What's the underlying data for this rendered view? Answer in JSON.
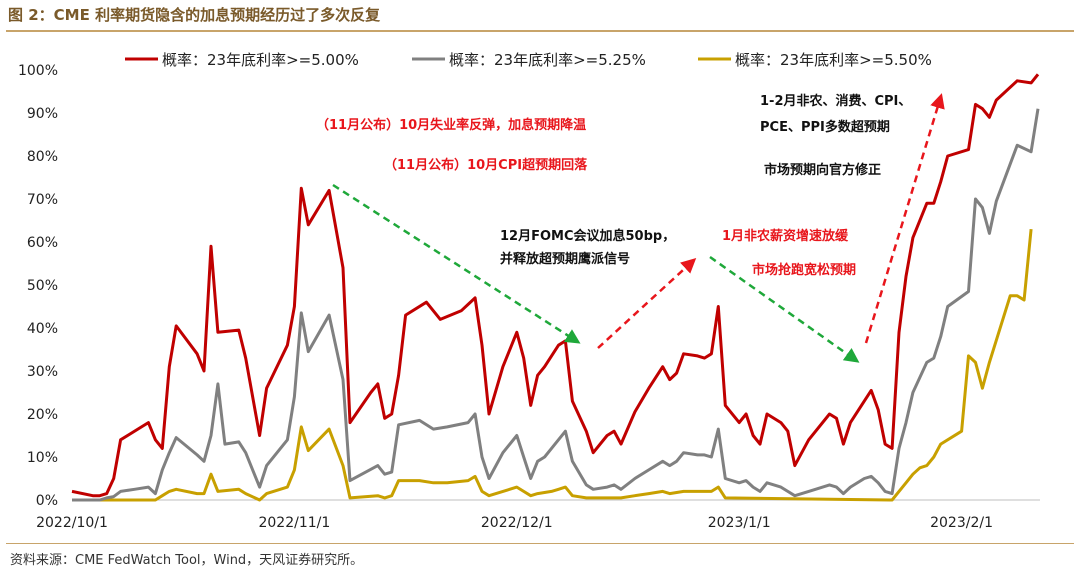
{
  "figure_title": "图 2：CME 利率期货隐含的加息预期经历过了多次反复",
  "source": "资料来源：CME FedWatch Tool，Wind，天风证券研究所。",
  "chart_data": {
    "type": "line",
    "title": "",
    "xlabel": "",
    "ylabel": "",
    "ylim": [
      0,
      100
    ],
    "y_ticks": [
      "0%",
      "10%",
      "20%",
      "30%",
      "40%",
      "50%",
      "60%",
      "70%",
      "80%",
      "90%",
      "100%"
    ],
    "x_ticks": [
      "2022/10/1",
      "2022/11/1",
      "2022/12/1",
      "2023/1/1",
      "2023/2/1"
    ],
    "legend_position": "top",
    "grid": false,
    "series": [
      {
        "name": "概率：23年底利率>=5.00%",
        "color": "#c00000",
        "values": [
          [
            0,
            2
          ],
          [
            3,
            1
          ],
          [
            4,
            1
          ],
          [
            5,
            1.5
          ],
          [
            6,
            5
          ],
          [
            7,
            14
          ],
          [
            10,
            17
          ],
          [
            11,
            18
          ],
          [
            12,
            14
          ],
          [
            13,
            12
          ],
          [
            14,
            31
          ],
          [
            15,
            40.5
          ],
          [
            18,
            34
          ],
          [
            19,
            30
          ],
          [
            20,
            59
          ],
          [
            21,
            39
          ],
          [
            24,
            39.5
          ],
          [
            25,
            33
          ],
          [
            27,
            15
          ],
          [
            28,
            26
          ],
          [
            31,
            36
          ],
          [
            32,
            45
          ],
          [
            33,
            72.5
          ],
          [
            34,
            64
          ],
          [
            37,
            72
          ],
          [
            39,
            54
          ],
          [
            40,
            18
          ],
          [
            43,
            25
          ],
          [
            44,
            27
          ],
          [
            45,
            19
          ],
          [
            46,
            20
          ],
          [
            47,
            29
          ],
          [
            48,
            43
          ],
          [
            51,
            46
          ],
          [
            53,
            42
          ],
          [
            56,
            44
          ],
          [
            57,
            45.5
          ],
          [
            58,
            47
          ],
          [
            59,
            36
          ],
          [
            60,
            20
          ],
          [
            62,
            31
          ],
          [
            64,
            39
          ],
          [
            65,
            33
          ],
          [
            66,
            22
          ],
          [
            67,
            29
          ],
          [
            68,
            31
          ],
          [
            70,
            36
          ],
          [
            71,
            37
          ],
          [
            72,
            23
          ],
          [
            74,
            16
          ],
          [
            75,
            11
          ],
          [
            77,
            15
          ],
          [
            78,
            16
          ],
          [
            79,
            13
          ],
          [
            81,
            20.5
          ],
          [
            83,
            26
          ],
          [
            85,
            31
          ],
          [
            86,
            28
          ],
          [
            87,
            29.5
          ],
          [
            88,
            34
          ],
          [
            90,
            33.5
          ],
          [
            91,
            33
          ],
          [
            92,
            34
          ],
          [
            93,
            45
          ],
          [
            94,
            22
          ],
          [
            96,
            18
          ],
          [
            97,
            20
          ],
          [
            98,
            15
          ],
          [
            99,
            13
          ],
          [
            100,
            20
          ],
          [
            102,
            18
          ],
          [
            103,
            16
          ],
          [
            104,
            8
          ],
          [
            106,
            14
          ],
          [
            109,
            20
          ],
          [
            110,
            19
          ],
          [
            111,
            13
          ],
          [
            112,
            18
          ],
          [
            114,
            23
          ],
          [
            115,
            25.5
          ],
          [
            116,
            21
          ],
          [
            117,
            13
          ],
          [
            118,
            12
          ],
          [
            119,
            39
          ],
          [
            120,
            52
          ],
          [
            121,
            61
          ],
          [
            123,
            69
          ],
          [
            124,
            69
          ],
          [
            125,
            74
          ],
          [
            126,
            80
          ],
          [
            129,
            81.5
          ],
          [
            130,
            92
          ],
          [
            131,
            91
          ],
          [
            132,
            89
          ],
          [
            133,
            93
          ],
          [
            136,
            97.5
          ],
          [
            138,
            97
          ],
          [
            139,
            99
          ]
        ]
      },
      {
        "name": "概率：23年底利率>=5.25%",
        "color": "#808080",
        "values": [
          [
            0,
            0
          ],
          [
            4,
            0
          ],
          [
            5,
            0.5
          ],
          [
            6,
            0.8
          ],
          [
            7,
            2
          ],
          [
            9,
            2.5
          ],
          [
            11,
            3
          ],
          [
            12,
            1.5
          ],
          [
            13,
            7
          ],
          [
            14,
            11
          ],
          [
            15,
            14.5
          ],
          [
            18,
            10.5
          ],
          [
            19,
            9
          ],
          [
            20,
            15
          ],
          [
            21,
            27
          ],
          [
            22,
            13
          ],
          [
            24,
            13.5
          ],
          [
            25,
            11
          ],
          [
            27,
            3
          ],
          [
            28,
            8
          ],
          [
            31,
            14
          ],
          [
            32,
            24
          ],
          [
            33,
            43.5
          ],
          [
            34,
            34.5
          ],
          [
            37,
            43
          ],
          [
            39,
            28
          ],
          [
            40,
            4.5
          ],
          [
            44,
            8
          ],
          [
            45,
            6
          ],
          [
            46,
            6.5
          ],
          [
            47,
            17.5
          ],
          [
            50,
            18.5
          ],
          [
            52,
            16.5
          ],
          [
            54,
            17
          ],
          [
            57,
            18
          ],
          [
            58,
            20
          ],
          [
            59,
            10
          ],
          [
            60,
            5
          ],
          [
            62,
            11
          ],
          [
            64,
            15
          ],
          [
            65,
            10
          ],
          [
            66,
            5
          ],
          [
            67,
            9
          ],
          [
            68,
            10
          ],
          [
            69,
            12
          ],
          [
            71,
            16
          ],
          [
            72,
            9
          ],
          [
            74,
            3.5
          ],
          [
            75,
            2.5
          ],
          [
            77,
            3
          ],
          [
            78,
            3.5
          ],
          [
            79,
            2.5
          ],
          [
            81,
            5
          ],
          [
            83,
            7
          ],
          [
            85,
            9
          ],
          [
            86,
            8
          ],
          [
            87,
            9
          ],
          [
            88,
            11
          ],
          [
            90,
            10.5
          ],
          [
            91,
            10.5
          ],
          [
            92,
            10
          ],
          [
            93,
            16.5
          ],
          [
            94,
            5
          ],
          [
            96,
            4
          ],
          [
            97,
            4.5
          ],
          [
            98,
            3
          ],
          [
            99,
            2
          ],
          [
            100,
            4
          ],
          [
            102,
            3
          ],
          [
            103,
            2
          ],
          [
            104,
            1
          ],
          [
            106,
            2
          ],
          [
            109,
            3.5
          ],
          [
            110,
            3
          ],
          [
            111,
            1.5
          ],
          [
            112,
            3
          ],
          [
            114,
            5
          ],
          [
            115,
            5.5
          ],
          [
            116,
            4
          ],
          [
            117,
            2
          ],
          [
            118,
            1.5
          ],
          [
            119,
            12
          ],
          [
            120,
            18
          ],
          [
            121,
            25
          ],
          [
            123,
            32
          ],
          [
            124,
            33
          ],
          [
            125,
            38
          ],
          [
            126,
            45
          ],
          [
            129,
            48.5
          ],
          [
            130,
            70
          ],
          [
            131,
            68
          ],
          [
            132,
            62
          ],
          [
            133,
            69.5
          ],
          [
            136,
            82.5
          ],
          [
            138,
            81
          ],
          [
            139,
            91
          ]
        ]
      },
      {
        "name": "概率：23年底利率>=5.50%",
        "color": "#c8a000",
        "values": [
          [
            0,
            0
          ],
          [
            12,
            0
          ],
          [
            13,
            1
          ],
          [
            14,
            2
          ],
          [
            15,
            2.5
          ],
          [
            18,
            1.5
          ],
          [
            19,
            1.5
          ],
          [
            20,
            6
          ],
          [
            21,
            2
          ],
          [
            24,
            2.5
          ],
          [
            25,
            1.5
          ],
          [
            27,
            0
          ],
          [
            28,
            1.5
          ],
          [
            31,
            3
          ],
          [
            32,
            7
          ],
          [
            33,
            17
          ],
          [
            34,
            11.5
          ],
          [
            37,
            16.5
          ],
          [
            39,
            8
          ],
          [
            40,
            0.5
          ],
          [
            44,
            1
          ],
          [
            45,
            0.5
          ],
          [
            46,
            1
          ],
          [
            47,
            4.5
          ],
          [
            50,
            4.5
          ],
          [
            52,
            4
          ],
          [
            54,
            4
          ],
          [
            57,
            4.5
          ],
          [
            58,
            5.5
          ],
          [
            59,
            2
          ],
          [
            60,
            1
          ],
          [
            62,
            2
          ],
          [
            64,
            3
          ],
          [
            65,
            2
          ],
          [
            66,
            1
          ],
          [
            67,
            1.5
          ],
          [
            69,
            2
          ],
          [
            70,
            2.5
          ],
          [
            71,
            3
          ],
          [
            72,
            1
          ],
          [
            74,
            0.5
          ],
          [
            79,
            0.5
          ],
          [
            81,
            1
          ],
          [
            83,
            1.5
          ],
          [
            85,
            2
          ],
          [
            86,
            1.5
          ],
          [
            88,
            2
          ],
          [
            92,
            2
          ],
          [
            93,
            3
          ],
          [
            94,
            0.5
          ],
          [
            118,
            0
          ],
          [
            119,
            2
          ],
          [
            120,
            4
          ],
          [
            121,
            6
          ],
          [
            122,
            7.5
          ],
          [
            123,
            8
          ],
          [
            124,
            10
          ],
          [
            125,
            13
          ],
          [
            128,
            16
          ],
          [
            129,
            33.5
          ],
          [
            130,
            32
          ],
          [
            131,
            26
          ],
          [
            132,
            32
          ],
          [
            135,
            47.5
          ],
          [
            136,
            47.5
          ],
          [
            137,
            46.5
          ],
          [
            138,
            63
          ]
        ]
      }
    ],
    "annotations": [
      {
        "text": "（11月公布）10月失业率反弹，加息预期降温",
        "color": "#e8161c"
      },
      {
        "text": "（11月公布）10月CPI超预期回落",
        "color": "#e8161c"
      },
      {
        "text": "12月FOMC会议加息50bp，",
        "color": "#111111"
      },
      {
        "text": "并释放超预期鹰派信号",
        "color": "#111111"
      },
      {
        "text": "1月非农薪资增速放缓",
        "color": "#e8161c"
      },
      {
        "text": "市场抢跑宽松预期",
        "color": "#e8161c"
      },
      {
        "text": "1-2月非农、消费、CPI、",
        "color": "#111111"
      },
      {
        "text": "PCE、PPI多数超预期",
        "color": "#111111"
      },
      {
        "text": "市场预期向官方修正",
        "color": "#111111"
      }
    ]
  }
}
